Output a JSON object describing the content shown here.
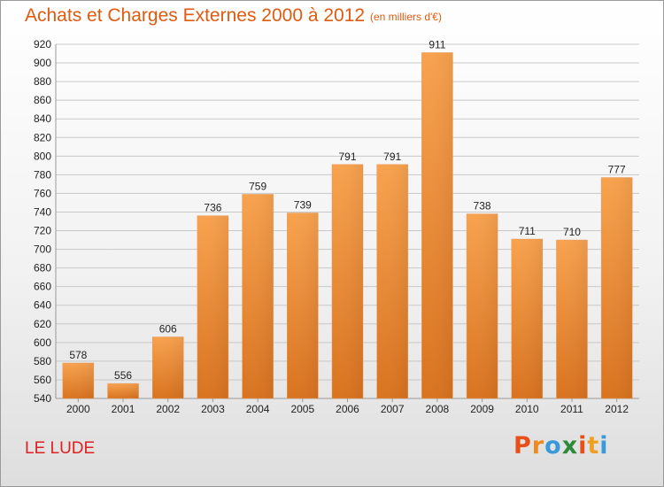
{
  "chart_data": {
    "type": "bar",
    "title": "Achats et Charges Externes 2000 à 2012",
    "subtitle": "(en milliers d'€)",
    "categories": [
      "2000",
      "2001",
      "2002",
      "2003",
      "2004",
      "2005",
      "2006",
      "2007",
      "2008",
      "2009",
      "2010",
      "2011",
      "2012"
    ],
    "values": [
      578,
      556,
      606,
      736,
      759,
      739,
      791,
      791,
      911,
      738,
      711,
      710,
      777
    ],
    "value_labels": [
      "578",
      "556",
      "606",
      "736",
      "759",
      "739",
      "791",
      "791",
      "911",
      "738",
      "711",
      "710",
      "777"
    ],
    "ylim": [
      540,
      920
    ],
    "y_ticks": [
      540,
      560,
      580,
      600,
      620,
      640,
      660,
      680,
      700,
      720,
      740,
      760,
      780,
      800,
      820,
      840,
      860,
      880,
      900,
      920
    ],
    "xlabel": "",
    "ylabel": "",
    "grid": true,
    "bar_color_top": "#f8a24e",
    "bar_color_bottom": "#d9731f"
  },
  "footer": {
    "place": "LE LUDE",
    "logo_letters": [
      "P",
      "r",
      "o",
      "x",
      "i",
      "t",
      "i"
    ],
    "logo_colors": [
      "#e8501a",
      "#f08a1c",
      "#3a9ad9",
      "#2c8a3a",
      "#e8501a",
      "#f0a020",
      "#3a9ad9"
    ]
  }
}
